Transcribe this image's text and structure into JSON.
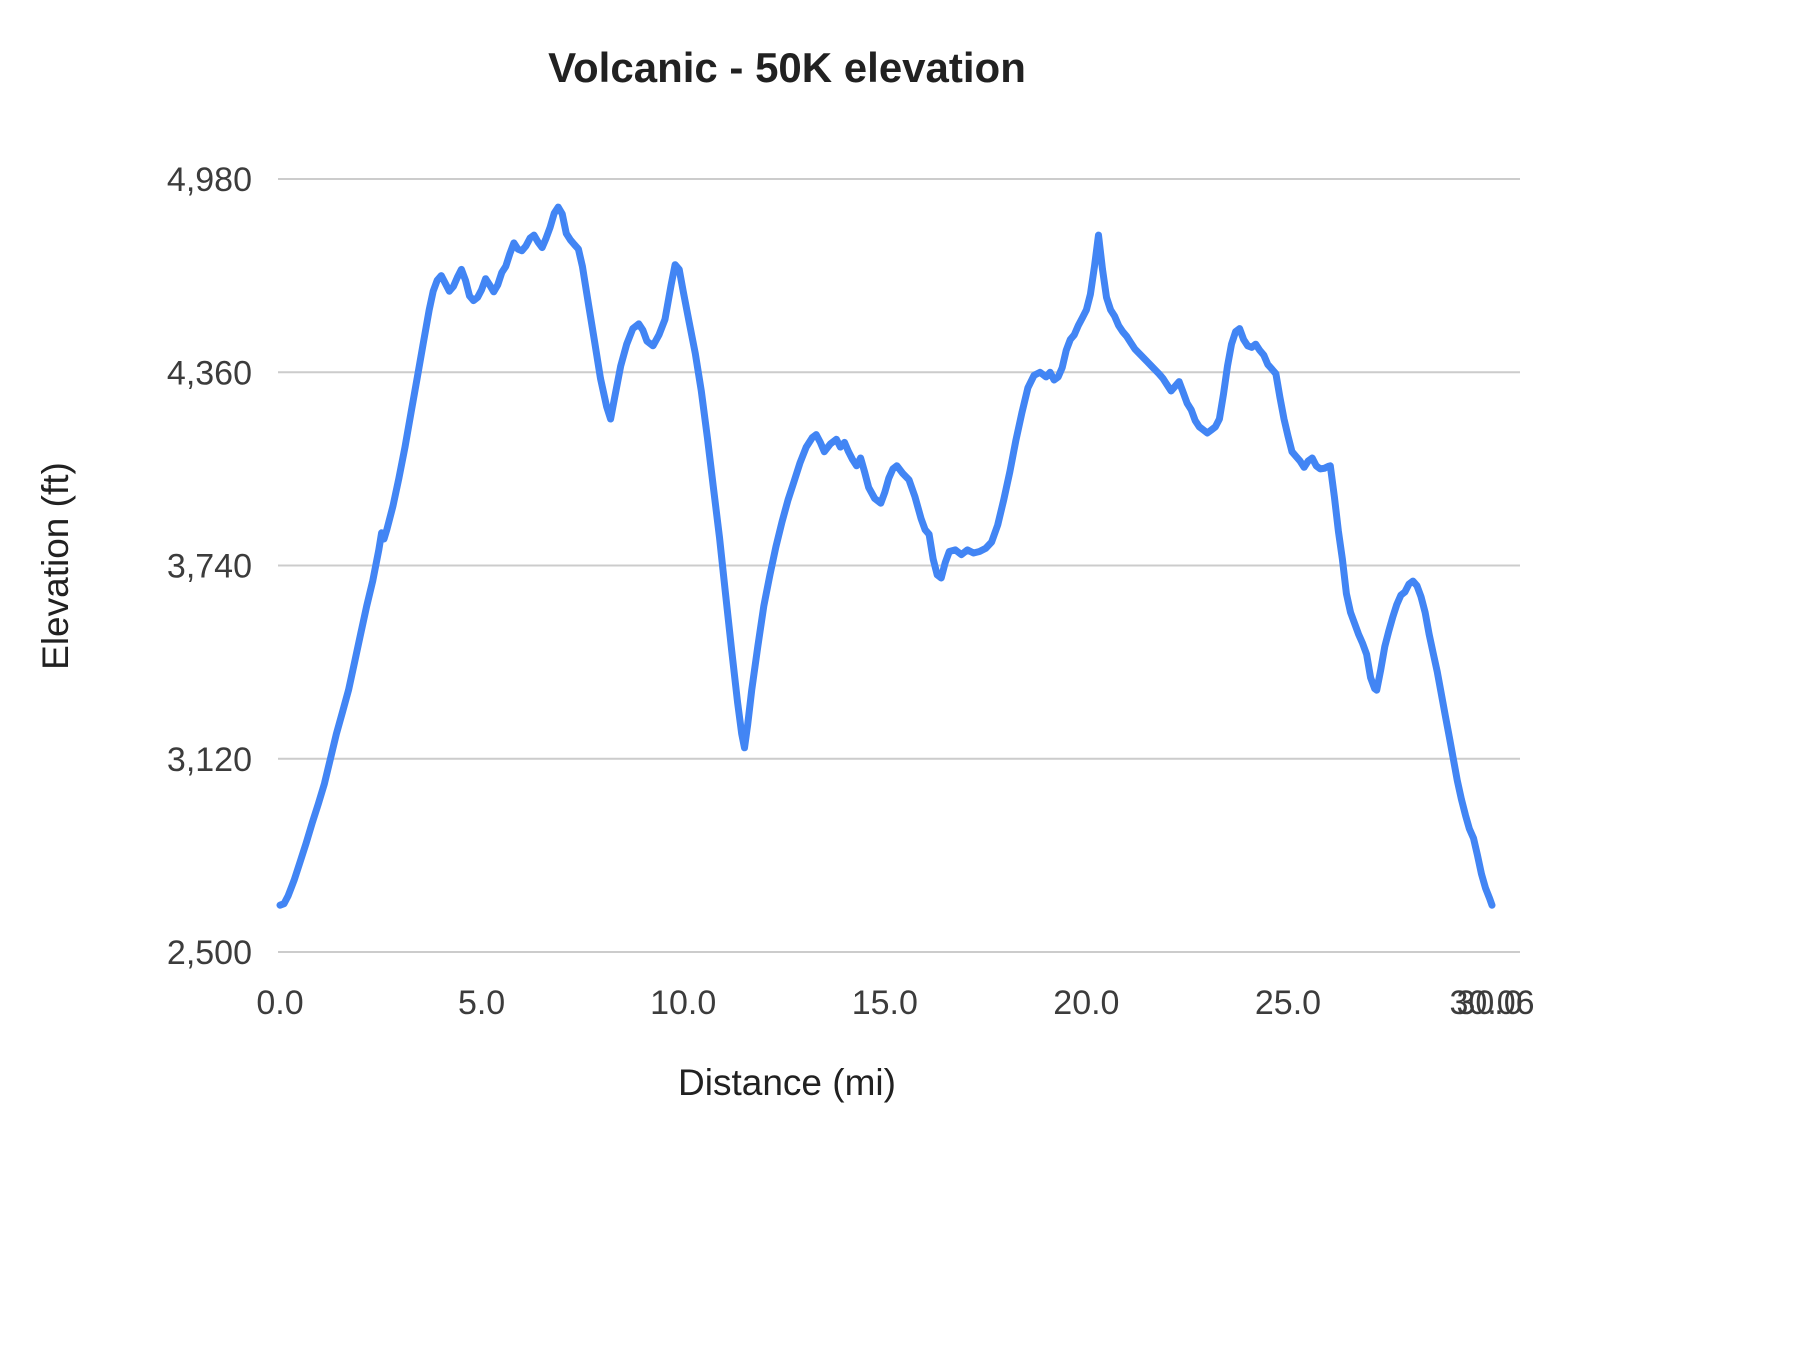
{
  "colors": {
    "line": "#4285f4",
    "grid": "#cccccc",
    "title_text": "#212121",
    "tick_text": "#3c3c3c",
    "background": "#ffffff"
  },
  "chart_data": {
    "type": "line",
    "title": "Volcanic - 50K elevation",
    "xlabel": "Distance (mi)",
    "ylabel": "Elevation (ft)",
    "xlim": [
      0,
      30.06
    ],
    "ylim": [
      2500,
      4980
    ],
    "grid": "horizontal",
    "legend": "none",
    "x_ticks": [
      {
        "value": 0,
        "label": "0.0"
      },
      {
        "value": 5,
        "label": "5.0"
      },
      {
        "value": 10,
        "label": "10.0"
      },
      {
        "value": 15,
        "label": "15.0"
      },
      {
        "value": 20,
        "label": "20.0"
      },
      {
        "value": 25,
        "label": "25.0"
      },
      {
        "value": 30,
        "label": "30.0"
      },
      {
        "value": 30.06,
        "label": "30.06"
      }
    ],
    "y_ticks": [
      {
        "value": 2500,
        "label": "2,500"
      },
      {
        "value": 3120,
        "label": "3,120"
      },
      {
        "value": 3740,
        "label": "3,740"
      },
      {
        "value": 4360,
        "label": "4,360"
      },
      {
        "value": 4980,
        "label": "4,980"
      }
    ],
    "series": [
      {
        "name": "Elevation",
        "color": "#4285f4",
        "points": [
          [
            0,
            2650
          ],
          [
            0.1,
            2655
          ],
          [
            0.2,
            2680
          ],
          [
            0.35,
            2730
          ],
          [
            0.5,
            2790
          ],
          [
            0.65,
            2850
          ],
          [
            0.8,
            2915
          ],
          [
            0.95,
            2975
          ],
          [
            1.1,
            3040
          ],
          [
            1.25,
            3120
          ],
          [
            1.4,
            3200
          ],
          [
            1.55,
            3270
          ],
          [
            1.7,
            3340
          ],
          [
            1.85,
            3430
          ],
          [
            2.0,
            3520
          ],
          [
            2.15,
            3610
          ],
          [
            2.3,
            3690
          ],
          [
            2.45,
            3790
          ],
          [
            2.52,
            3845
          ],
          [
            2.58,
            3825
          ],
          [
            2.65,
            3855
          ],
          [
            2.8,
            3930
          ],
          [
            2.95,
            4020
          ],
          [
            3.1,
            4120
          ],
          [
            3.25,
            4230
          ],
          [
            3.4,
            4340
          ],
          [
            3.55,
            4450
          ],
          [
            3.7,
            4560
          ],
          [
            3.8,
            4620
          ],
          [
            3.9,
            4655
          ],
          [
            4.0,
            4670
          ],
          [
            4.1,
            4645
          ],
          [
            4.2,
            4620
          ],
          [
            4.3,
            4635
          ],
          [
            4.4,
            4665
          ],
          [
            4.5,
            4690
          ],
          [
            4.6,
            4655
          ],
          [
            4.7,
            4605
          ],
          [
            4.8,
            4590
          ],
          [
            4.9,
            4600
          ],
          [
            5.0,
            4625
          ],
          [
            5.1,
            4660
          ],
          [
            5.2,
            4640
          ],
          [
            5.3,
            4618
          ],
          [
            5.4,
            4640
          ],
          [
            5.5,
            4680
          ],
          [
            5.6,
            4700
          ],
          [
            5.7,
            4740
          ],
          [
            5.8,
            4775
          ],
          [
            5.9,
            4755
          ],
          [
            6.0,
            4750
          ],
          [
            6.1,
            4765
          ],
          [
            6.2,
            4790
          ],
          [
            6.3,
            4800
          ],
          [
            6.4,
            4778
          ],
          [
            6.5,
            4760
          ],
          [
            6.6,
            4790
          ],
          [
            6.7,
            4825
          ],
          [
            6.8,
            4870
          ],
          [
            6.9,
            4890
          ],
          [
            7.0,
            4868
          ],
          [
            7.1,
            4805
          ],
          [
            7.2,
            4785
          ],
          [
            7.3,
            4770
          ],
          [
            7.4,
            4755
          ],
          [
            7.5,
            4700
          ],
          [
            7.65,
            4580
          ],
          [
            7.8,
            4460
          ],
          [
            7.95,
            4340
          ],
          [
            8.1,
            4250
          ],
          [
            8.2,
            4210
          ],
          [
            8.3,
            4280
          ],
          [
            8.45,
            4380
          ],
          [
            8.6,
            4450
          ],
          [
            8.75,
            4500
          ],
          [
            8.9,
            4515
          ],
          [
            9.0,
            4495
          ],
          [
            9.1,
            4460
          ],
          [
            9.25,
            4445
          ],
          [
            9.4,
            4480
          ],
          [
            9.55,
            4530
          ],
          [
            9.7,
            4640
          ],
          [
            9.8,
            4705
          ],
          [
            9.9,
            4690
          ],
          [
            10.0,
            4620
          ],
          [
            10.15,
            4520
          ],
          [
            10.3,
            4420
          ],
          [
            10.45,
            4300
          ],
          [
            10.6,
            4150
          ],
          [
            10.75,
            3990
          ],
          [
            10.9,
            3830
          ],
          [
            11.05,
            3650
          ],
          [
            11.2,
            3470
          ],
          [
            11.35,
            3300
          ],
          [
            11.45,
            3200
          ],
          [
            11.52,
            3155
          ],
          [
            11.6,
            3230
          ],
          [
            11.7,
            3340
          ],
          [
            11.85,
            3480
          ],
          [
            12.0,
            3610
          ],
          [
            12.15,
            3710
          ],
          [
            12.3,
            3800
          ],
          [
            12.45,
            3880
          ],
          [
            12.6,
            3950
          ],
          [
            12.75,
            4010
          ],
          [
            12.9,
            4070
          ],
          [
            13.05,
            4120
          ],
          [
            13.2,
            4150
          ],
          [
            13.3,
            4160
          ],
          [
            13.4,
            4135
          ],
          [
            13.5,
            4105
          ],
          [
            13.65,
            4130
          ],
          [
            13.8,
            4145
          ],
          [
            13.9,
            4120
          ],
          [
            14.0,
            4135
          ],
          [
            14.1,
            4105
          ],
          [
            14.2,
            4080
          ],
          [
            14.3,
            4060
          ],
          [
            14.4,
            4085
          ],
          [
            14.5,
            4040
          ],
          [
            14.6,
            3990
          ],
          [
            14.75,
            3955
          ],
          [
            14.9,
            3940
          ],
          [
            15.0,
            3975
          ],
          [
            15.1,
            4020
          ],
          [
            15.2,
            4050
          ],
          [
            15.3,
            4060
          ],
          [
            15.45,
            4035
          ],
          [
            15.6,
            4015
          ],
          [
            15.75,
            3960
          ],
          [
            15.9,
            3890
          ],
          [
            16.0,
            3855
          ],
          [
            16.1,
            3840
          ],
          [
            16.2,
            3760
          ],
          [
            16.3,
            3710
          ],
          [
            16.4,
            3700
          ],
          [
            16.5,
            3750
          ],
          [
            16.6,
            3785
          ],
          [
            16.75,
            3790
          ],
          [
            16.9,
            3775
          ],
          [
            17.05,
            3790
          ],
          [
            17.2,
            3780
          ],
          [
            17.35,
            3785
          ],
          [
            17.5,
            3795
          ],
          [
            17.65,
            3815
          ],
          [
            17.8,
            3870
          ],
          [
            17.95,
            3950
          ],
          [
            18.1,
            4040
          ],
          [
            18.25,
            4140
          ],
          [
            18.4,
            4230
          ],
          [
            18.55,
            4310
          ],
          [
            18.7,
            4350
          ],
          [
            18.85,
            4360
          ],
          [
            19.0,
            4345
          ],
          [
            19.1,
            4360
          ],
          [
            19.2,
            4335
          ],
          [
            19.3,
            4345
          ],
          [
            19.4,
            4375
          ],
          [
            19.5,
            4430
          ],
          [
            19.6,
            4465
          ],
          [
            19.7,
            4480
          ],
          [
            19.8,
            4510
          ],
          [
            19.9,
            4535
          ],
          [
            20.0,
            4560
          ],
          [
            20.1,
            4610
          ],
          [
            20.2,
            4700
          ],
          [
            20.3,
            4800
          ],
          [
            20.4,
            4690
          ],
          [
            20.5,
            4600
          ],
          [
            20.6,
            4560
          ],
          [
            20.7,
            4540
          ],
          [
            20.8,
            4510
          ],
          [
            20.9,
            4490
          ],
          [
            21.0,
            4475
          ],
          [
            21.1,
            4455
          ],
          [
            21.2,
            4435
          ],
          [
            21.35,
            4415
          ],
          [
            21.5,
            4395
          ],
          [
            21.65,
            4375
          ],
          [
            21.8,
            4355
          ],
          [
            21.9,
            4340
          ],
          [
            22.0,
            4320
          ],
          [
            22.1,
            4300
          ],
          [
            22.2,
            4315
          ],
          [
            22.3,
            4330
          ],
          [
            22.4,
            4295
          ],
          [
            22.5,
            4260
          ],
          [
            22.6,
            4240
          ],
          [
            22.7,
            4205
          ],
          [
            22.8,
            4185
          ],
          [
            22.9,
            4175
          ],
          [
            23.0,
            4165
          ],
          [
            23.1,
            4175
          ],
          [
            23.2,
            4185
          ],
          [
            23.3,
            4210
          ],
          [
            23.4,
            4290
          ],
          [
            23.5,
            4380
          ],
          [
            23.6,
            4450
          ],
          [
            23.7,
            4490
          ],
          [
            23.8,
            4500
          ],
          [
            23.9,
            4465
          ],
          [
            24.0,
            4445
          ],
          [
            24.1,
            4440
          ],
          [
            24.2,
            4450
          ],
          [
            24.3,
            4430
          ],
          [
            24.4,
            4415
          ],
          [
            24.5,
            4385
          ],
          [
            24.6,
            4370
          ],
          [
            24.7,
            4355
          ],
          [
            24.8,
            4280
          ],
          [
            24.9,
            4210
          ],
          [
            25.0,
            4155
          ],
          [
            25.1,
            4105
          ],
          [
            25.2,
            4090
          ],
          [
            25.3,
            4075
          ],
          [
            25.4,
            4055
          ],
          [
            25.5,
            4075
          ],
          [
            25.6,
            4085
          ],
          [
            25.7,
            4060
          ],
          [
            25.8,
            4050
          ],
          [
            25.9,
            4052
          ],
          [
            26.0,
            4058
          ],
          [
            26.05,
            4060
          ],
          [
            26.15,
            3960
          ],
          [
            26.25,
            3850
          ],
          [
            26.35,
            3760
          ],
          [
            26.45,
            3650
          ],
          [
            26.55,
            3590
          ],
          [
            26.65,
            3555
          ],
          [
            26.75,
            3520
          ],
          [
            26.85,
            3490
          ],
          [
            26.95,
            3455
          ],
          [
            27.05,
            3380
          ],
          [
            27.15,
            3345
          ],
          [
            27.2,
            3340
          ],
          [
            27.3,
            3405
          ],
          [
            27.4,
            3480
          ],
          [
            27.5,
            3530
          ],
          [
            27.6,
            3575
          ],
          [
            27.7,
            3615
          ],
          [
            27.8,
            3645
          ],
          [
            27.9,
            3655
          ],
          [
            28.0,
            3680
          ],
          [
            28.1,
            3690
          ],
          [
            28.2,
            3675
          ],
          [
            28.3,
            3640
          ],
          [
            28.4,
            3590
          ],
          [
            28.5,
            3520
          ],
          [
            28.6,
            3460
          ],
          [
            28.7,
            3400
          ],
          [
            28.8,
            3330
          ],
          [
            28.9,
            3260
          ],
          [
            29.0,
            3190
          ],
          [
            29.1,
            3120
          ],
          [
            29.2,
            3050
          ],
          [
            29.3,
            2990
          ],
          [
            29.4,
            2940
          ],
          [
            29.5,
            2895
          ],
          [
            29.6,
            2865
          ],
          [
            29.7,
            2810
          ],
          [
            29.8,
            2750
          ],
          [
            29.9,
            2705
          ],
          [
            30.0,
            2672
          ],
          [
            30.06,
            2650
          ]
        ]
      }
    ]
  }
}
